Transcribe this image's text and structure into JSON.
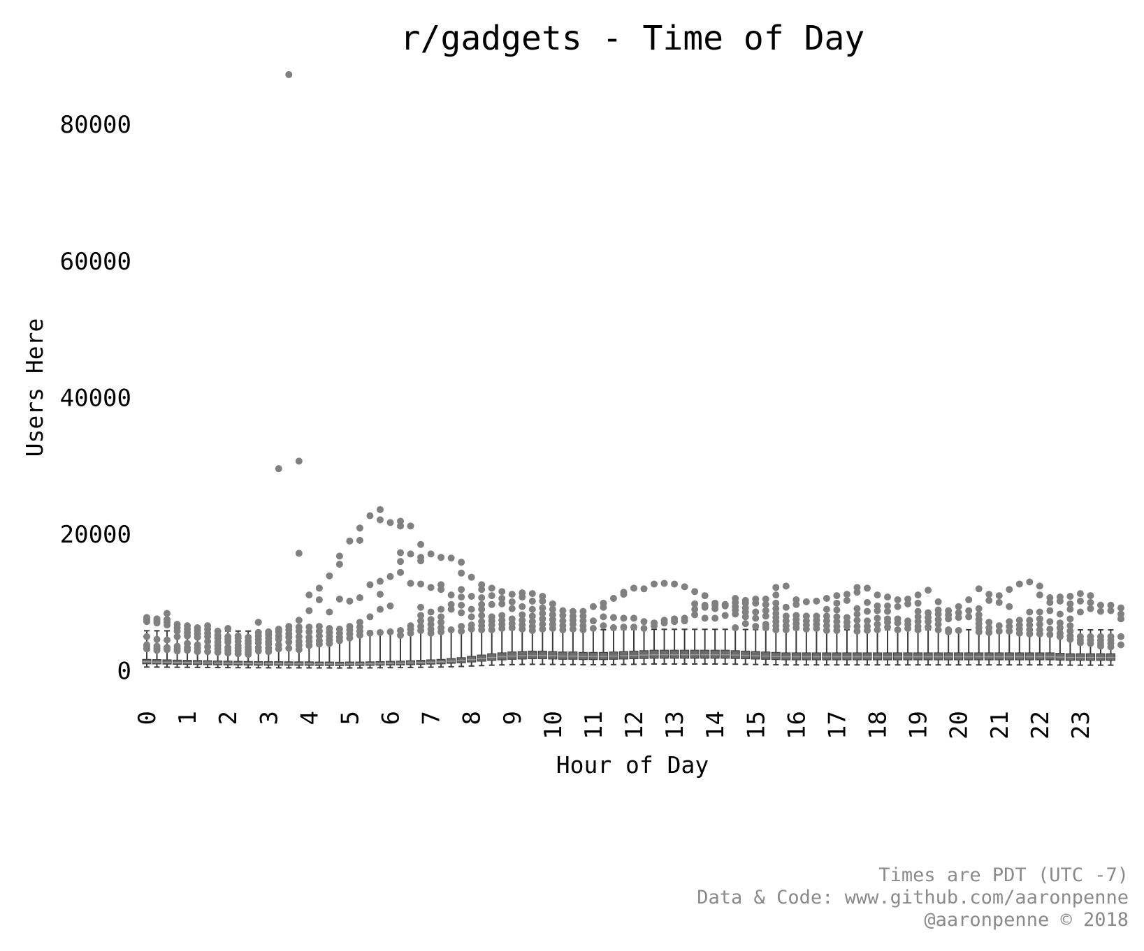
{
  "chart_data": {
    "type": "box",
    "title": "r/gadgets - Time of Day",
    "xlabel": "Hour of Day",
    "ylabel": "Users Here",
    "ylim": [
      -3000,
      88000
    ],
    "yticks": [
      0,
      20000,
      40000,
      60000,
      80000
    ],
    "xtick_labels": [
      "0",
      "1",
      "2",
      "3",
      "4",
      "5",
      "6",
      "7",
      "8",
      "9",
      "10",
      "11",
      "12",
      "13",
      "14",
      "15",
      "16",
      "17",
      "18",
      "19",
      "20",
      "21",
      "22",
      "23"
    ],
    "slots_per_hour": 4,
    "box_color": "#6b6b6b",
    "outlier_color": "#808080",
    "grid": false,
    "legend": "none",
    "boxes_median": [
      1300,
      1280,
      1250,
      1220,
      1200,
      1180,
      1150,
      1120,
      1100,
      1080,
      1060,
      1050,
      1040,
      1040,
      1030,
      1020,
      1020,
      1000,
      1000,
      980,
      1000,
      1000,
      1020,
      1050,
      1080,
      1100,
      1150,
      1200,
      1250,
      1300,
      1400,
      1500,
      1650,
      1800,
      1950,
      2050,
      2150,
      2200,
      2250,
      2250,
      2200,
      2150,
      2150,
      2100,
      2100,
      2100,
      2150,
      2200,
      2250,
      2300,
      2350,
      2350,
      2350,
      2350,
      2350,
      2350,
      2350,
      2350,
      2300,
      2250,
      2200,
      2150,
      2100,
      2050,
      2050,
      2050,
      2050,
      2050,
      2050,
      2050,
      2050,
      2050,
      2050,
      2050,
      2050,
      2050,
      2050,
      2050,
      2050,
      2050,
      2050,
      2050,
      2050,
      2050,
      2050,
      2050,
      2050,
      2050,
      2050,
      2050,
      2000,
      1950,
      1950,
      1950,
      1950,
      1950
    ],
    "outliers": [
      {
        "h": 0,
        "ys": [
          7800,
          7500,
          7200,
          5000,
          3800,
          3500,
          3200
        ]
      },
      {
        "h": 0.25,
        "ys": [
          7600,
          7300,
          7000,
          4600,
          3600,
          3300,
          3000
        ]
      },
      {
        "h": 0.5,
        "ys": [
          8400,
          7500,
          7100,
          6700,
          4500,
          3400,
          3100
        ]
      },
      {
        "h": 0.75,
        "ys": [
          6800,
          6300,
          5800,
          5000,
          3600,
          3200,
          2900
        ]
      },
      {
        "h": 1,
        "ys": [
          6600,
          6100,
          5600,
          5100,
          4000,
          3400,
          3000
        ]
      },
      {
        "h": 1.25,
        "ys": [
          6300,
          5900,
          5400,
          4900,
          3800,
          3300,
          2800
        ]
      },
      {
        "h": 1.5,
        "ys": [
          6600,
          6100,
          5500,
          5000,
          4300,
          3500,
          2800
        ]
      },
      {
        "h": 1.75,
        "ys": [
          5800,
          5200,
          4800,
          4200,
          3700,
          3200,
          2700
        ]
      },
      {
        "h": 2,
        "ys": [
          6200,
          5000,
          4600,
          4200,
          3400,
          3000,
          2600
        ]
      },
      {
        "h": 2.25,
        "ys": [
          5100,
          4800,
          4300,
          3700,
          3300,
          2900,
          2500
        ]
      },
      {
        "h": 2.5,
        "ys": [
          4900,
          4400,
          4000,
          3500,
          3100,
          2700,
          2400
        ]
      },
      {
        "h": 2.75,
        "ys": [
          7100,
          5600,
          5100,
          4600,
          4100,
          3400,
          2900
        ]
      },
      {
        "h": 3,
        "ys": [
          5700,
          5300,
          4800,
          4300,
          3900,
          3300,
          2800
        ]
      },
      {
        "h": 3.25,
        "ys": [
          29600,
          6100,
          5700,
          5100,
          4600,
          3800,
          3200
        ]
      },
      {
        "h": 3.5,
        "ys": [
          87300,
          6500,
          6000,
          5400,
          4900,
          4200,
          3300
        ]
      },
      {
        "h": 3.75,
        "ys": [
          30700,
          17200,
          7400,
          6400,
          5800,
          5000,
          4300,
          3700,
          3100
        ]
      },
      {
        "h": 4,
        "ys": [
          11100,
          8800,
          6400,
          5700,
          4900,
          4300,
          3700
        ]
      },
      {
        "h": 4.25,
        "ys": [
          12100,
          10400,
          6500,
          5800,
          5100,
          4400,
          3900
        ]
      },
      {
        "h": 4.5,
        "ys": [
          13900,
          8600,
          6200,
          5600,
          5000,
          4500,
          4000
        ]
      },
      {
        "h": 4.75,
        "ys": [
          16800,
          15600,
          10500,
          6100,
          5500,
          4900,
          4400
        ]
      },
      {
        "h": 5,
        "ys": [
          19000,
          10200,
          6500,
          6000,
          5400,
          4800
        ]
      },
      {
        "h": 5.25,
        "ys": [
          20900,
          19100,
          10700,
          7100,
          6400,
          5800,
          5200
        ]
      },
      {
        "h": 5.5,
        "ys": [
          22700,
          12600,
          7900,
          5500
        ]
      },
      {
        "h": 5.75,
        "ys": [
          23600,
          22100,
          13100,
          11200,
          9000,
          5600
        ]
      },
      {
        "h": 6,
        "ys": [
          21700,
          13800,
          9500,
          5700
        ]
      },
      {
        "h": 6.25,
        "ys": [
          21900,
          21200,
          17300,
          16000,
          14400,
          5900,
          5200
        ]
      },
      {
        "h": 6.5,
        "ys": [
          21200,
          17100,
          12800,
          6600,
          6100,
          5500
        ]
      },
      {
        "h": 6.75,
        "ys": [
          18500,
          16600,
          16100,
          12700,
          9300,
          8100,
          7300,
          6500,
          5900
        ]
      },
      {
        "h": 7,
        "ys": [
          17100,
          12200,
          8600,
          7500,
          6800,
          6100,
          5500
        ]
      },
      {
        "h": 7.25,
        "ys": [
          16600,
          12600,
          11900,
          9000,
          7900,
          7100,
          6300,
          5700
        ]
      },
      {
        "h": 7.5,
        "ys": [
          16500,
          11100,
          9700,
          9000,
          6000
        ]
      },
      {
        "h": 7.75,
        "ys": [
          15900,
          14300,
          11900,
          10800,
          9600,
          8500,
          6500,
          5800
        ]
      },
      {
        "h": 8,
        "ys": [
          13700,
          10900,
          9000,
          7900,
          6700,
          6100
        ]
      },
      {
        "h": 8.25,
        "ys": [
          12600,
          11900,
          10700,
          9700,
          9000,
          8100,
          7200,
          6600,
          6000
        ]
      },
      {
        "h": 8.5,
        "ys": [
          12100,
          11000,
          9700,
          7900,
          7300,
          6700,
          6000
        ]
      },
      {
        "h": 8.75,
        "ys": [
          11600,
          10600,
          9800,
          8100,
          7400,
          6800,
          6200
        ]
      },
      {
        "h": 9,
        "ys": [
          11200,
          10100,
          9100,
          7600,
          6900,
          6300
        ]
      },
      {
        "h": 9.25,
        "ys": [
          11400,
          10800,
          9400,
          8200,
          7400,
          6700,
          6100
        ]
      },
      {
        "h": 9.5,
        "ys": [
          11300,
          10200,
          9000,
          8000,
          7200,
          6500,
          5900
        ]
      },
      {
        "h": 9.75,
        "ys": [
          10900,
          10200,
          9200,
          8400,
          7600,
          6800,
          6100
        ]
      },
      {
        "h": 10,
        "ys": [
          9800,
          9000,
          8200,
          7500,
          6800,
          6200
        ]
      },
      {
        "h": 10.25,
        "ys": [
          8800,
          8100,
          7300,
          6600,
          6000
        ]
      },
      {
        "h": 10.5,
        "ys": [
          8700,
          8000,
          7400,
          6800,
          6100
        ]
      },
      {
        "h": 10.75,
        "ys": [
          8700,
          8000,
          7300,
          6600,
          6000
        ]
      },
      {
        "h": 11,
        "ys": [
          9400,
          7300,
          6200
        ]
      },
      {
        "h": 11.25,
        "ys": [
          9900,
          9300,
          7900,
          6600
        ]
      },
      {
        "h": 11.5,
        "ys": [
          10600,
          7800,
          6300
        ]
      },
      {
        "h": 11.75,
        "ys": [
          11500,
          11200,
          7700,
          6400
        ]
      },
      {
        "h": 12,
        "ys": [
          12100,
          7700,
          6400
        ]
      },
      {
        "h": 12.25,
        "ys": [
          12000,
          7200,
          6200
        ]
      },
      {
        "h": 12.5,
        "ys": [
          12700,
          7000,
          6600
        ]
      },
      {
        "h": 12.75,
        "ys": [
          12800,
          7400,
          7000
        ]
      },
      {
        "h": 13,
        "ys": [
          12700,
          7600,
          7200
        ]
      },
      {
        "h": 13.25,
        "ys": [
          12300,
          7700,
          7300
        ]
      },
      {
        "h": 13.5,
        "ys": [
          11600,
          9800,
          9000,
          8200
        ]
      },
      {
        "h": 13.75,
        "ys": [
          11000,
          9600,
          9300,
          7700
        ]
      },
      {
        "h": 14,
        "ys": [
          9900,
          9600,
          9100,
          7700
        ]
      },
      {
        "h": 14.25,
        "ys": [
          9700,
          9500,
          8100
        ]
      },
      {
        "h": 14.5,
        "ys": [
          10600,
          10000,
          9400,
          8900,
          8300,
          6300
        ]
      },
      {
        "h": 14.75,
        "ys": [
          10300,
          9900,
          9200,
          8600,
          7900,
          6900
        ]
      },
      {
        "h": 15,
        "ys": [
          10500,
          9900,
          8600,
          7700,
          6500
        ]
      },
      {
        "h": 15.25,
        "ys": [
          10500,
          9700,
          8800,
          8000,
          6800,
          6300
        ]
      },
      {
        "h": 15.5,
        "ys": [
          12200,
          11100,
          9900,
          9100,
          8400,
          7800,
          7200,
          6600,
          6000
        ]
      },
      {
        "h": 15.75,
        "ys": [
          12400,
          9300,
          8000,
          7300,
          6600,
          6000
        ]
      },
      {
        "h": 16,
        "ys": [
          10400,
          9700,
          8100,
          7500,
          6900,
          6300
        ]
      },
      {
        "h": 16.25,
        "ys": [
          10100,
          8000,
          7300,
          6700,
          6100
        ]
      },
      {
        "h": 16.5,
        "ys": [
          10200,
          8000,
          7400,
          6800,
          6200
        ]
      },
      {
        "h": 16.75,
        "ys": [
          10600,
          9000,
          8000,
          7300,
          6600,
          5900
        ]
      },
      {
        "h": 17,
        "ys": [
          11000,
          9900,
          8900,
          7900,
          7200,
          6500,
          5900
        ]
      },
      {
        "h": 17.25,
        "ys": [
          11200,
          10300,
          7800,
          7100,
          6500
        ]
      },
      {
        "h": 17.5,
        "ys": [
          12200,
          11500,
          9100,
          8300,
          7400,
          6500,
          5800
        ]
      },
      {
        "h": 17.75,
        "ys": [
          12100,
          10000,
          8700,
          7300,
          6500,
          5900
        ]
      },
      {
        "h": 18,
        "ys": [
          11100,
          9500,
          8800,
          7700,
          6800,
          6000
        ]
      },
      {
        "h": 18.25,
        "ys": [
          10800,
          9500,
          8700,
          7600,
          7100,
          6400
        ]
      },
      {
        "h": 18.5,
        "ys": [
          10400,
          9400,
          7600,
          7000,
          6000
        ]
      },
      {
        "h": 18.75,
        "ys": [
          10500,
          9800,
          7300,
          6800,
          6200
        ]
      },
      {
        "h": 19,
        "ys": [
          11100,
          9900,
          8700,
          7900,
          7200,
          6500,
          6000
        ]
      },
      {
        "h": 19.25,
        "ys": [
          11800,
          8500,
          7800,
          7200,
          6400
        ]
      },
      {
        "h": 19.5,
        "ys": [
          10100,
          8900,
          8300,
          7500,
          6800,
          6000
        ]
      },
      {
        "h": 19.75,
        "ys": [
          8800,
          8200,
          7600,
          6000,
          5700
        ]
      },
      {
        "h": 20,
        "ys": [
          9400,
          8500,
          7800,
          5900
        ]
      },
      {
        "h": 20.25,
        "ys": [
          10400,
          8800,
          7900
        ]
      },
      {
        "h": 20.5,
        "ys": [
          12000,
          9100,
          8200,
          7500,
          6900,
          6300,
          5700
        ]
      },
      {
        "h": 20.75,
        "ys": [
          11200,
          10300,
          7100,
          6300,
          5600
        ]
      },
      {
        "h": 21,
        "ys": [
          11000,
          10000,
          6600,
          5800
        ]
      },
      {
        "h": 21.25,
        "ys": [
          11900,
          9400,
          7200,
          6500,
          5800
        ]
      },
      {
        "h": 21.5,
        "ys": [
          12700,
          7400,
          6700,
          6100,
          5500
        ]
      },
      {
        "h": 21.75,
        "ys": [
          13000,
          8600,
          7400,
          6700,
          6000,
          5400
        ]
      },
      {
        "h": 22,
        "ys": [
          12400,
          11100,
          8600,
          7600,
          6800,
          6000,
          5400
        ]
      },
      {
        "h": 22.25,
        "ys": [
          10700,
          10000,
          8800,
          7200,
          6100,
          5300
        ]
      },
      {
        "h": 22.5,
        "ys": [
          10800,
          10200,
          8300,
          7000,
          6300,
          5500,
          5000
        ]
      },
      {
        "h": 22.75,
        "ys": [
          10900,
          9800,
          9000,
          7600,
          6600,
          5800,
          5100,
          4600
        ]
      },
      {
        "h": 23,
        "ys": [
          11300,
          10200,
          8600,
          5000,
          4500,
          4100
        ]
      },
      {
        "h": 23.25,
        "ys": [
          11000,
          10000,
          9100,
          5000,
          4500,
          4000
        ]
      },
      {
        "h": 23.5,
        "ys": [
          9600,
          8700,
          5000,
          4500,
          4000,
          3600
        ]
      },
      {
        "h": 23.75,
        "ys": [
          9600,
          8800,
          5000,
          4500,
          4000,
          3500
        ]
      },
      {
        "h": 24,
        "ys": [
          9200,
          8300,
          7600,
          5000,
          3800
        ]
      }
    ]
  },
  "credits": [
    "Times are PDT (UTC -7)",
    "Data & Code: www.github.com/aaronpenne",
    "@aaronpenne © 2018"
  ]
}
